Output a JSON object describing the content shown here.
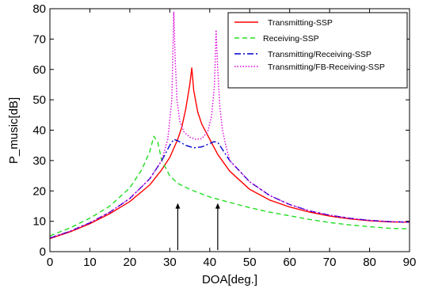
{
  "chart_data": {
    "type": "line",
    "xlabel": "DOA[deg.]",
    "ylabel": "P_music[dB]",
    "xlim": [
      0,
      90
    ],
    "ylim": [
      0,
      80
    ],
    "xticks": [
      0,
      10,
      20,
      30,
      40,
      50,
      60,
      70,
      80,
      90
    ],
    "yticks": [
      0,
      10,
      20,
      30,
      40,
      50,
      60,
      70,
      80
    ],
    "grid": false,
    "legend_position": "top-right",
    "series": [
      {
        "name": "Transmitting-SSP",
        "color": "#ff0000",
        "dash": "solid",
        "x": [
          0,
          5,
          10,
          15,
          20,
          25,
          28,
          30,
          32,
          33,
          34,
          35,
          35.5,
          36,
          37,
          38,
          40,
          42,
          45,
          50,
          55,
          60,
          65,
          70,
          75,
          80,
          85,
          90
        ],
        "y": [
          4.3,
          6.5,
          9.2,
          12.5,
          16.5,
          22,
          27,
          31,
          37,
          41,
          47,
          55,
          60.5,
          53,
          46,
          42,
          37,
          32,
          26.5,
          20.5,
          17,
          14.7,
          13,
          11.7,
          10.8,
          10.2,
          9.8,
          9.7
        ]
      },
      {
        "name": "Receiving-SSP",
        "color": "#22dd22",
        "dash": "dashed",
        "x": [
          0,
          5,
          10,
          15,
          20,
          23,
          25,
          26,
          27,
          28,
          30,
          32,
          35,
          40,
          45,
          50,
          55,
          60,
          65,
          70,
          75,
          80,
          85,
          90
        ],
        "y": [
          5.2,
          7.8,
          11,
          15,
          21,
          27,
          33,
          38,
          36,
          30,
          25,
          22.5,
          20.5,
          18,
          16.2,
          14.5,
          13,
          11.8,
          10.6,
          9.6,
          8.8,
          8.2,
          7.7,
          7.5
        ]
      },
      {
        "name": "Transmitting/Receiving-SSP",
        "color": "#0000cc",
        "dash": "dashdot",
        "x": [
          0,
          5,
          10,
          15,
          20,
          25,
          28,
          30,
          31,
          32,
          34,
          36,
          38,
          40,
          41,
          42,
          43,
          45,
          50,
          55,
          60,
          65,
          70,
          75,
          80,
          85,
          90
        ],
        "y": [
          4.5,
          6.7,
          9.5,
          13,
          17.5,
          24,
          30,
          35,
          37,
          36.5,
          35,
          34.2,
          34.5,
          35.6,
          36.2,
          36,
          34,
          30,
          23,
          18.5,
          15.5,
          13.4,
          12,
          11,
          10.3,
          9.9,
          9.7
        ]
      },
      {
        "name": "Transmitting/FB-Receiving-SSP",
        "color": "#dd00dd",
        "dash": "dotted",
        "x": [
          0,
          5,
          10,
          15,
          20,
          25,
          28,
          29.5,
          30.5,
          31,
          31.3,
          31.8,
          32.5,
          33.5,
          35,
          36.5,
          38,
          39.5,
          40.5,
          41.2,
          41.6,
          42,
          42.5,
          43.2,
          44,
          45,
          50,
          55,
          60,
          65,
          70,
          75,
          80,
          85,
          90
        ],
        "y": [
          4.5,
          6.7,
          9.5,
          13,
          17.5,
          24,
          30,
          37,
          50,
          79,
          65,
          50,
          43,
          39.5,
          37.7,
          37,
          37.2,
          39.5,
          45,
          55,
          73,
          60,
          48,
          40,
          35,
          30,
          23,
          18.5,
          15.5,
          13.4,
          12,
          11,
          10.3,
          9.9,
          9.7
        ]
      }
    ],
    "arrows": [
      {
        "x": 32,
        "y_from": 0.5,
        "y_to": 16
      },
      {
        "x": 42,
        "y_from": 0.5,
        "y_to": 16
      }
    ]
  }
}
